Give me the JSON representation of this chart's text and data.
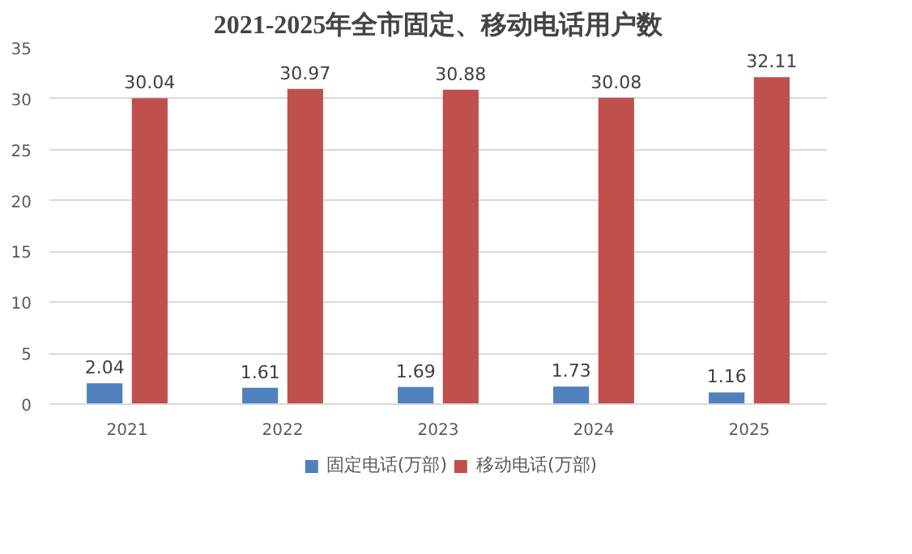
{
  "chart_data": {
    "type": "bar",
    "title": "2021-2025年全市固定、移动电话用户数",
    "categories": [
      "2021",
      "2022",
      "2023",
      "2024",
      "2025"
    ],
    "series": [
      {
        "name": "固定电话(万部)",
        "color": "#4f81bd",
        "values": [
          2.04,
          1.61,
          1.69,
          1.73,
          1.16
        ]
      },
      {
        "name": "移动电话(万部)",
        "color": "#c0504d",
        "values": [
          30.04,
          30.97,
          30.88,
          30.08,
          32.11
        ]
      }
    ],
    "ylim": [
      0,
      35
    ],
    "yticks": [
      0,
      5,
      10,
      15,
      20,
      25,
      30,
      35
    ],
    "grid": "y",
    "legend": "bottom",
    "data_labels": true
  }
}
